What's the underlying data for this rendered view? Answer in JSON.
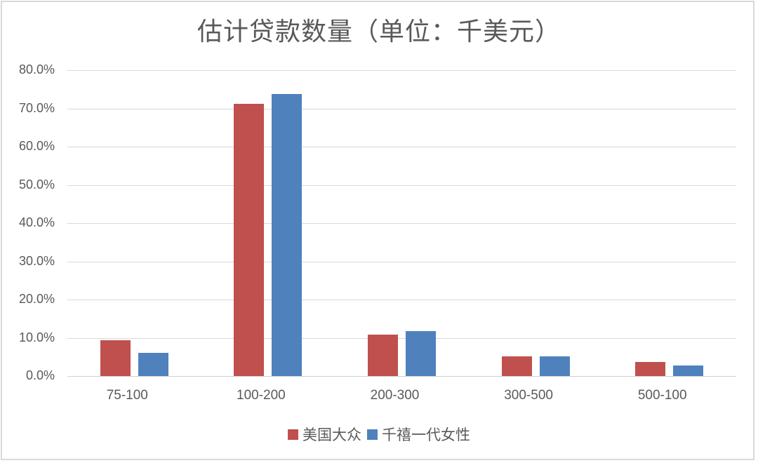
{
  "chart_data": {
    "type": "bar",
    "title": "估计贷款数量（单位：千美元）",
    "xlabel": "",
    "ylabel": "",
    "categories": [
      "75-100",
      "100-200",
      "200-300",
      "300-500",
      "500-100"
    ],
    "series": [
      {
        "name": "美国大众",
        "color": "#c0504d",
        "values": [
          9.4,
          71.2,
          10.9,
          5.1,
          3.7
        ]
      },
      {
        "name": "千禧一代女性",
        "color": "#4f81bd",
        "values": [
          6.0,
          73.8,
          11.7,
          5.1,
          2.8
        ]
      }
    ],
    "ylim": [
      0,
      80
    ],
    "yticks": [
      "0.0%",
      "10.0%",
      "20.0%",
      "30.0%",
      "40.0%",
      "50.0%",
      "60.0%",
      "70.0%",
      "80.0%"
    ],
    "grid": true,
    "legend_position": "bottom"
  },
  "legend": {
    "items": [
      {
        "label": "美国大众",
        "color": "#c0504d"
      },
      {
        "label": "千禧一代女性",
        "color": "#4f81bd"
      }
    ]
  }
}
